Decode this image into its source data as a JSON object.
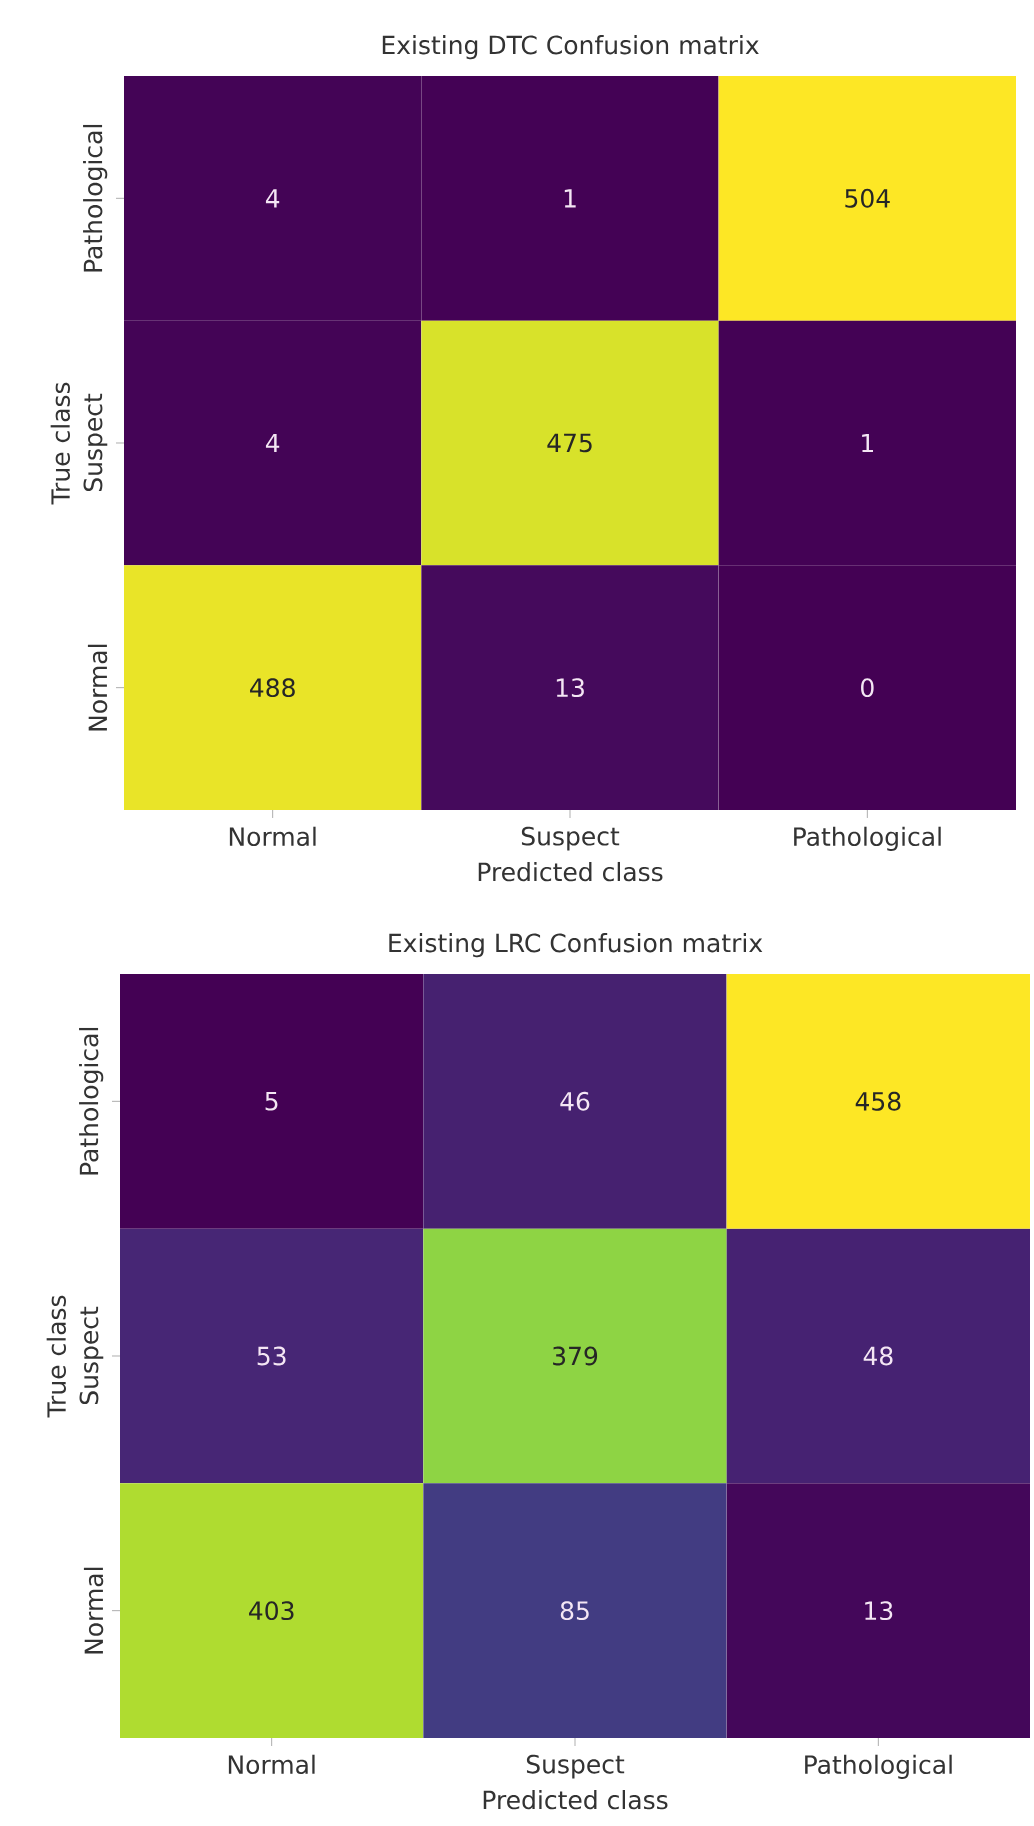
{
  "chart_data": [
    {
      "type": "heatmap",
      "title": "Existing DTC Confusion matrix",
      "xlabel": "Predicted class",
      "ylabel": "True class",
      "categories": [
        "Normal",
        "Suspect",
        "Pathological"
      ],
      "y_categories": [
        "Pathological",
        "Suspect",
        "Normal"
      ],
      "cells": [
        [
          4,
          1,
          504
        ],
        [
          4,
          475,
          1
        ],
        [
          488,
          13,
          0
        ]
      ],
      "data_labels": true
    },
    {
      "type": "heatmap",
      "title": "Existing LRC Confusion matrix",
      "xlabel": "Predicted class",
      "ylabel": "True class",
      "categories": [
        "Normal",
        "Suspect",
        "Pathological"
      ],
      "y_categories": [
        "Pathological",
        "Suspect",
        "Normal"
      ],
      "cells": [
        [
          5,
          46,
          458
        ],
        [
          53,
          379,
          48
        ],
        [
          403,
          85,
          13
        ]
      ],
      "data_labels": true
    }
  ]
}
